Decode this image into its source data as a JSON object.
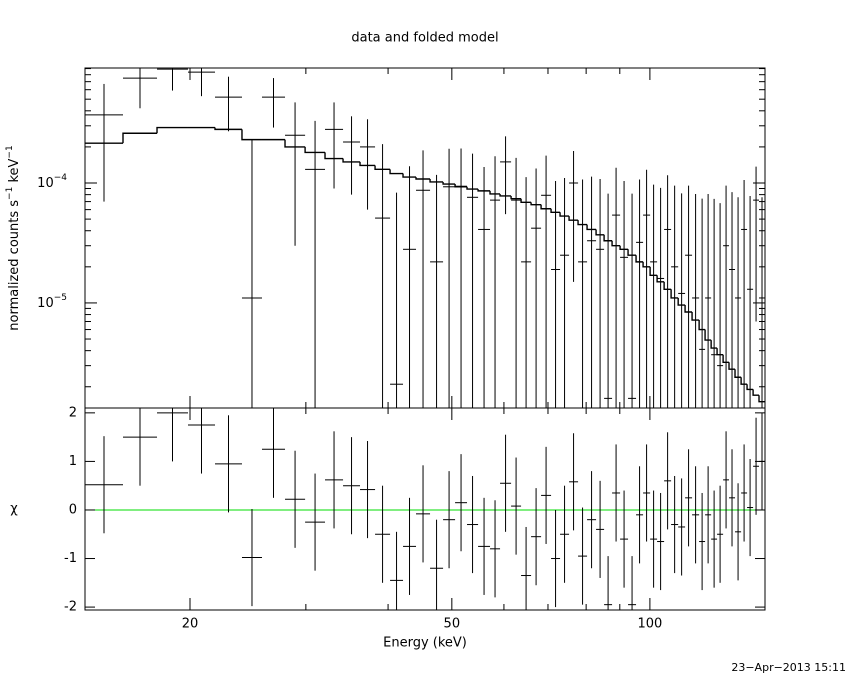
{
  "chart_data": [
    {
      "type": "spectrum",
      "title": "data and folded model",
      "ylabel": {
        "text": "normalized counts s",
        "sup1": "−1",
        "text2": " keV",
        "sup2": "−1"
      },
      "log_y": true,
      "log_x": true,
      "xlim": [
        13.85,
        149.6
      ],
      "ylim": [
        1.33e-06,
        0.00091
      ],
      "yticks": [
        {
          "value": 0.0001,
          "label": "10",
          "exponent": "−4"
        },
        {
          "value": 1e-05,
          "label": "10",
          "exponent": "−5"
        }
      ],
      "yminorticks": [
        2e-06,
        3e-06,
        4e-06,
        5e-06,
        6e-06,
        7e-06,
        8e-06,
        9e-06,
        2e-05,
        3e-05,
        4e-05,
        5e-05,
        6e-05,
        7e-05,
        8e-05,
        9e-05,
        0.0002,
        0.0003,
        0.0004,
        0.0005,
        0.0006,
        0.0007,
        0.0008,
        0.0009
      ],
      "bin_edges": [
        13.85,
        15.82,
        17.82,
        19.86,
        21.83,
        23.99,
        25.73,
        27.89,
        29.92,
        32.08,
        34.17,
        36.26,
        38.22,
        40.28,
        42.15,
        44.11,
        46.33,
        48.49,
        50.57,
        52.73,
        54.81,
        57.15,
        59.19,
        61.52,
        63.71,
        65.98,
        68.33,
        70.76,
        73.02,
        75.36,
        77.77,
        80.26,
        82.83,
        85.19,
        87.6,
        90.09,
        92.64,
        95.27,
        97.64,
        100.07,
        102.55,
        105.1,
        107.7,
        110.4,
        113.1,
        115.9,
        118.8,
        121.3,
        123.9,
        126.5,
        129.2,
        131.9,
        134.7,
        137.6,
        140.5,
        143.5,
        146.5,
        149.6
      ],
      "series": [
        {
          "name": "data",
          "color": "#000000",
          "values": [
            0.00037,
            0.00075,
            0.00089,
            0.00084,
            0.00052,
            1.1e-05,
            0.00052,
            0.00025,
            0.00013,
            0.00028,
            0.00022,
            0.0002,
            5.1e-05,
            2.1e-06,
            2.8e-05,
            8.7e-05,
            2.2e-05,
            9.3e-05,
            9.4e-05,
            7.6e-05,
            4.1e-05,
            7.2e-05,
            0.00015,
            7.2e-05,
            2.2e-05,
            4.2e-05,
            7.9e-05,
            1.9e-05,
            2.5e-05,
            0.0001,
            2.2e-05,
            3.3e-05,
            2.8e-05,
            1.6e-06,
            5.4e-05,
            2.4e-05,
            1.6e-06,
            3.2e-05,
            5.4e-05,
            2.2e-05,
            1.6e-05,
            4.1e-05,
            2e-05,
            1.2e-05,
            2.5e-05,
            1.1e-05,
            4.1e-06,
            1.1e-05,
            3.7e-06,
            3e-06,
            3e-05,
            1.9e-05,
            1.1e-05,
            4.1e-05,
            1.3e-05,
            7.2e-05,
            1.1e-05
          ],
          "errors": [
            0.0003,
            0.00033,
            0.0003,
            0.00031,
            0.00025,
            0.00022,
            0.00023,
            0.00022,
            0.0002,
            0.00019,
            0.00014,
            0.00014,
            0.00016,
            8.1e-05,
            0.00011,
            0.0001,
            9.5e-05,
            0.0001,
            0.0001,
            0.0001,
            9.5e-05,
            9.5e-05,
            9.5e-05,
            9e-05,
            9e-05,
            9e-05,
            9e-05,
            8.5e-05,
            8.5e-05,
            8.5e-05,
            8.5e-05,
            8e-05,
            8e-05,
            8e-05,
            8e-05,
            8e-05,
            8e-05,
            7.5e-05,
            7.5e-05,
            7.5e-05,
            7.5e-05,
            7.5e-05,
            7.5e-05,
            7e-05,
            7e-05,
            7e-05,
            7e-05,
            7e-05,
            7e-05,
            6.5e-05,
            6.5e-05,
            6.5e-05,
            6.5e-05,
            6.5e-05,
            6.5e-05,
            6.5e-05,
            6.5e-05
          ]
        },
        {
          "name": "model",
          "color": "#000000",
          "values": [
            0.000215,
            0.00026,
            0.00029,
            0.00029,
            0.00028,
            0.00023,
            0.00023,
            0.0002,
            0.00018,
            0.00016,
            0.00015,
            0.00014,
            0.00013,
            0.00012,
            0.000112,
            0.000108,
            0.000102,
            9.8e-05,
            9.3e-05,
            8.9e-05,
            8.6e-05,
            8.1e-05,
            7.8e-05,
            7.4e-05,
            6.9e-05,
            6.6e-05,
            6.1e-05,
            5.7e-05,
            5.3e-05,
            4.9e-05,
            4.5e-05,
            4.1e-05,
            3.7e-05,
            3.3e-05,
            3e-05,
            2.8e-05,
            2.5e-05,
            2.2e-05,
            2e-05,
            1.7e-05,
            1.5e-05,
            1.3e-05,
            1.1e-05,
            9.6e-06,
            8.4e-06,
            7.2e-06,
            6e-06,
            4.9e-06,
            4.2e-06,
            3.7e-06,
            3.2e-06,
            2.8e-06,
            2.4e-06,
            2.1e-06,
            1.9e-06,
            1.7e-06,
            1.5e-06
          ]
        }
      ]
    },
    {
      "type": "residuals",
      "ylabel": "χ",
      "xlabel": "Energy (keV)",
      "ylim": [
        -2.06,
        2.1
      ],
      "yticks": [
        2,
        1,
        0,
        -1,
        -2
      ],
      "xticks": [
        20,
        50,
        100
      ],
      "xminorticks": [
        30,
        40,
        60,
        70,
        80,
        90
      ],
      "reference_line": {
        "value": 0,
        "color": "#00dd00"
      },
      "color": "#000000",
      "error": 1,
      "values": [
        0.52,
        1.5,
        2.0,
        1.75,
        0.95,
        -0.98,
        1.25,
        0.22,
        -0.25,
        0.62,
        0.5,
        0.42,
        -0.5,
        -1.45,
        -0.75,
        -0.08,
        -1.2,
        -0.2,
        0.15,
        -0.3,
        -0.75,
        -0.8,
        0.55,
        0.08,
        -1.35,
        -0.55,
        0.3,
        -1.0,
        -0.5,
        0.58,
        -0.95,
        -0.2,
        -0.4,
        -1.95,
        0.35,
        -0.6,
        -1.95,
        -0.1,
        0.35,
        -0.6,
        -0.65,
        0.6,
        -0.3,
        -0.35,
        0.25,
        -0.1,
        -0.65,
        -0.1,
        -0.6,
        -0.5,
        0.62,
        0.25,
        -0.45,
        0.35,
        0.05,
        0.9,
        1.0
      ]
    },
    {
      "type": "stamp",
      "text": "23−Apr−2013 15:11"
    }
  ]
}
